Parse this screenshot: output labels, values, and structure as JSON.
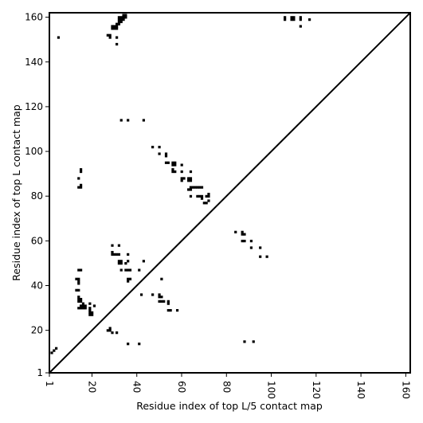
{
  "chart_data": {
    "type": "heatmap",
    "xlabel": "Residue index of top L/5 contact map",
    "ylabel": "Residue index of top L contact map",
    "xlim": [
      1,
      162
    ],
    "ylim": [
      1,
      162
    ],
    "x_ticks": [
      1,
      20,
      40,
      60,
      80,
      100,
      120,
      140,
      160
    ],
    "y_ticks": [
      1,
      20,
      40,
      60,
      80,
      100,
      120,
      140,
      160
    ],
    "grid": false,
    "diagonal_line": true,
    "cell_color": "#000000",
    "background_color": "#ffffff",
    "lower_triangle_contacts": [
      [
        2,
        10
      ],
      [
        3,
        11
      ],
      [
        4,
        12
      ],
      [
        27,
        20
      ],
      [
        28,
        20
      ],
      [
        28,
        21
      ],
      [
        29,
        19
      ],
      [
        31,
        19
      ],
      [
        36,
        14
      ],
      [
        41,
        14
      ],
      [
        88,
        15
      ],
      [
        92,
        15
      ],
      [
        14,
        30
      ],
      [
        15,
        30
      ],
      [
        16,
        30
      ],
      [
        17,
        30
      ],
      [
        15,
        31
      ],
      [
        16,
        31
      ],
      [
        17,
        31
      ],
      [
        16,
        32
      ],
      [
        14,
        33
      ],
      [
        15,
        33
      ],
      [
        14,
        34
      ],
      [
        15,
        34
      ],
      [
        14,
        35
      ],
      [
        19,
        27
      ],
      [
        20,
        27
      ],
      [
        19,
        28
      ],
      [
        20,
        28
      ],
      [
        19,
        29
      ],
      [
        19,
        30
      ],
      [
        21,
        31
      ],
      [
        19,
        32
      ],
      [
        13,
        38
      ],
      [
        14,
        38
      ],
      [
        13,
        43
      ],
      [
        14,
        43
      ],
      [
        14,
        41
      ],
      [
        14,
        42
      ],
      [
        14,
        47
      ],
      [
        15,
        47
      ],
      [
        29,
        54
      ],
      [
        30,
        54
      ],
      [
        31,
        54
      ],
      [
        32,
        54
      ],
      [
        29,
        55
      ],
      [
        29,
        58
      ],
      [
        32,
        58
      ],
      [
        32,
        50
      ],
      [
        33,
        50
      ],
      [
        32,
        51
      ],
      [
        33,
        51
      ],
      [
        36,
        47
      ],
      [
        35,
        47
      ],
      [
        37,
        47
      ],
      [
        33,
        47
      ],
      [
        35,
        50
      ],
      [
        36,
        51
      ],
      [
        36,
        54
      ],
      [
        36,
        43
      ],
      [
        37,
        43
      ],
      [
        36,
        42
      ],
      [
        41,
        47
      ],
      [
        43,
        51
      ],
      [
        42,
        36
      ],
      [
        47,
        36
      ],
      [
        50,
        35
      ],
      [
        51,
        35
      ],
      [
        50,
        36
      ],
      [
        50,
        33
      ],
      [
        51,
        33
      ],
      [
        52,
        33
      ],
      [
        51,
        43
      ],
      [
        54,
        33
      ],
      [
        54,
        32
      ],
      [
        54,
        29
      ],
      [
        55,
        29
      ],
      [
        58,
        29
      ],
      [
        84,
        64
      ],
      [
        87,
        64
      ],
      [
        87,
        63
      ],
      [
        88,
        63
      ],
      [
        87,
        60
      ],
      [
        88,
        60
      ],
      [
        91,
        60
      ],
      [
        91,
        57
      ],
      [
        95,
        57
      ],
      [
        95,
        53
      ],
      [
        98,
        53
      ]
    ],
    "upper_triangle_contacts": [
      [
        5,
        151
      ],
      [
        27,
        152
      ],
      [
        28,
        152
      ],
      [
        28,
        151
      ],
      [
        31,
        151
      ],
      [
        31,
        148
      ],
      [
        29,
        155
      ],
      [
        29,
        156
      ],
      [
        30,
        155
      ],
      [
        30,
        156
      ],
      [
        31,
        155
      ],
      [
        31,
        156
      ],
      [
        31,
        157
      ],
      [
        32,
        157
      ],
      [
        32,
        158
      ],
      [
        33,
        158
      ],
      [
        32,
        159
      ],
      [
        33,
        159
      ],
      [
        34,
        159
      ],
      [
        32,
        160
      ],
      [
        33,
        160
      ],
      [
        34,
        160
      ],
      [
        35,
        160
      ],
      [
        35,
        161
      ],
      [
        34,
        161
      ],
      [
        106,
        159
      ],
      [
        106,
        160
      ],
      [
        109,
        159
      ],
      [
        110,
        159
      ],
      [
        109,
        160
      ],
      [
        110,
        160
      ],
      [
        113,
        159
      ],
      [
        113,
        160
      ],
      [
        117,
        159
      ],
      [
        113,
        156
      ],
      [
        33,
        114
      ],
      [
        36,
        114
      ],
      [
        43,
        114
      ],
      [
        15,
        92
      ],
      [
        15,
        91
      ],
      [
        14,
        88
      ],
      [
        15,
        85
      ],
      [
        14,
        84
      ],
      [
        15,
        84
      ],
      [
        47,
        102
      ],
      [
        50,
        102
      ],
      [
        50,
        99
      ],
      [
        53,
        98
      ],
      [
        53,
        99
      ],
      [
        53,
        95
      ],
      [
        54,
        95
      ],
      [
        56,
        94
      ],
      [
        57,
        94
      ],
      [
        56,
        95
      ],
      [
        57,
        95
      ],
      [
        56,
        92
      ],
      [
        56,
        91
      ],
      [
        57,
        91
      ],
      [
        60,
        94
      ],
      [
        60,
        91
      ],
      [
        60,
        88
      ],
      [
        61,
        88
      ],
      [
        60,
        87
      ],
      [
        63,
        88
      ],
      [
        64,
        88
      ],
      [
        64,
        87
      ],
      [
        63,
        87
      ],
      [
        64,
        91
      ],
      [
        64,
        84
      ],
      [
        65,
        84
      ],
      [
        66,
        84
      ],
      [
        67,
        84
      ],
      [
        68,
        84
      ],
      [
        69,
        84
      ],
      [
        63,
        83
      ],
      [
        64,
        83
      ],
      [
        64,
        80
      ],
      [
        67,
        80
      ],
      [
        68,
        80
      ],
      [
        69,
        80
      ],
      [
        69,
        79
      ],
      [
        70,
        77
      ],
      [
        71,
        77
      ],
      [
        72,
        78
      ],
      [
        71,
        80
      ],
      [
        72,
        80
      ],
      [
        72,
        81
      ]
    ]
  }
}
